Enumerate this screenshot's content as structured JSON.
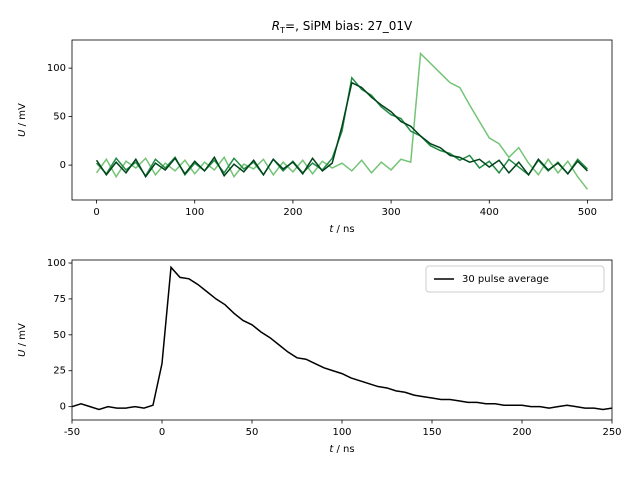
{
  "chart_data": [
    {
      "type": "line",
      "title": {
        "symbol": "R",
        "subscript": "T",
        "text": "=, SiPM bias: 27_01V"
      },
      "xlabel": {
        "symbol": "t",
        "unit": " / ns"
      },
      "ylabel": {
        "symbol": "U",
        "unit": " / mV"
      },
      "xlim": [
        -25,
        525
      ],
      "ylim": [
        -36,
        129
      ],
      "xticks": [
        0,
        100,
        200,
        300,
        400,
        500
      ],
      "yticks": [
        0,
        50,
        100
      ],
      "x": [
        0,
        10,
        20,
        30,
        40,
        50,
        60,
        70,
        80,
        90,
        100,
        110,
        120,
        130,
        140,
        150,
        160,
        170,
        180,
        190,
        200,
        210,
        220,
        230,
        240,
        250,
        260,
        270,
        280,
        290,
        300,
        310,
        320,
        330,
        340,
        350,
        360,
        370,
        380,
        390,
        400,
        410,
        420,
        430,
        440,
        450,
        460,
        470,
        480,
        490,
        500
      ],
      "series": [
        {
          "color": "#74c476",
          "values": [
            -8,
            6,
            -12,
            4,
            -3,
            7,
            -10,
            2,
            -6,
            5,
            -9,
            3,
            -5,
            8,
            -12,
            1,
            -4,
            6,
            -10,
            3,
            -7,
            5,
            -9,
            4,
            -3,
            2,
            -6,
            5,
            -8,
            3,
            -5,
            6,
            3,
            115,
            105,
            95,
            85,
            80,
            62,
            45,
            28,
            22,
            8,
            18,
            2,
            -10,
            6,
            -8,
            4,
            -12,
            -25
          ]
        },
        {
          "color": "#238b45",
          "values": [
            2,
            -9,
            7,
            -5,
            3,
            -11,
            6,
            -3,
            8,
            -10,
            2,
            -6,
            5,
            -8,
            7,
            -4,
            3,
            -10,
            6,
            -6,
            4,
            -8,
            2,
            -5,
            7,
            35,
            90,
            78,
            72,
            60,
            52,
            48,
            35,
            30,
            20,
            15,
            12,
            5,
            10,
            -3,
            4,
            -8,
            6,
            -2,
            -10,
            5,
            -6,
            3,
            -9,
            6,
            -4
          ]
        },
        {
          "color": "#00441b",
          "values": [
            5,
            -10,
            3,
            -8,
            6,
            -12,
            2,
            -5,
            7,
            -9,
            4,
            -6,
            8,
            -11,
            1,
            -7,
            5,
            -10,
            6,
            -4,
            3,
            -9,
            7,
            -6,
            2,
            40,
            85,
            80,
            70,
            62,
            55,
            45,
            40,
            30,
            22,
            18,
            10,
            8,
            3,
            6,
            -2,
            5,
            -8,
            3,
            -10,
            6,
            -5,
            2,
            -9,
            4,
            -6
          ]
        }
      ]
    },
    {
      "type": "line",
      "xlabel": {
        "symbol": "t",
        "unit": " / ns"
      },
      "ylabel": {
        "symbol": "U",
        "unit": " / mV"
      },
      "xlim": [
        -50,
        250
      ],
      "ylim": [
        -9.3,
        102.1
      ],
      "xticks": [
        -50,
        0,
        50,
        100,
        150,
        200,
        250
      ],
      "yticks": [
        0,
        25,
        50,
        75,
        100
      ],
      "legend": "upper right",
      "x": [
        -50,
        -45,
        -40,
        -35,
        -30,
        -25,
        -20,
        -15,
        -10,
        -5,
        0,
        5,
        10,
        15,
        20,
        25,
        30,
        35,
        40,
        45,
        50,
        55,
        60,
        65,
        70,
        75,
        80,
        85,
        90,
        95,
        100,
        105,
        110,
        115,
        120,
        125,
        130,
        135,
        140,
        145,
        150,
        155,
        160,
        165,
        170,
        175,
        180,
        185,
        190,
        195,
        200,
        205,
        210,
        215,
        220,
        225,
        230,
        235,
        240,
        245,
        250
      ],
      "series": [
        {
          "name": "30 pulse average",
          "color": "#000000",
          "values": [
            0,
            2,
            0,
            -2,
            0,
            -1,
            -1,
            0,
            -1,
            1,
            30,
            97,
            90,
            89,
            85,
            80,
            75,
            71,
            65,
            60,
            57,
            52,
            48,
            43,
            38,
            34,
            33,
            30,
            27,
            25,
            23,
            20,
            18,
            16,
            14,
            13,
            11,
            10,
            8,
            7,
            6,
            5,
            5,
            4,
            3,
            3,
            2,
            2,
            1,
            1,
            1,
            0,
            0,
            -1,
            0,
            1,
            0,
            -1,
            -1,
            -2,
            -1
          ]
        }
      ]
    }
  ]
}
